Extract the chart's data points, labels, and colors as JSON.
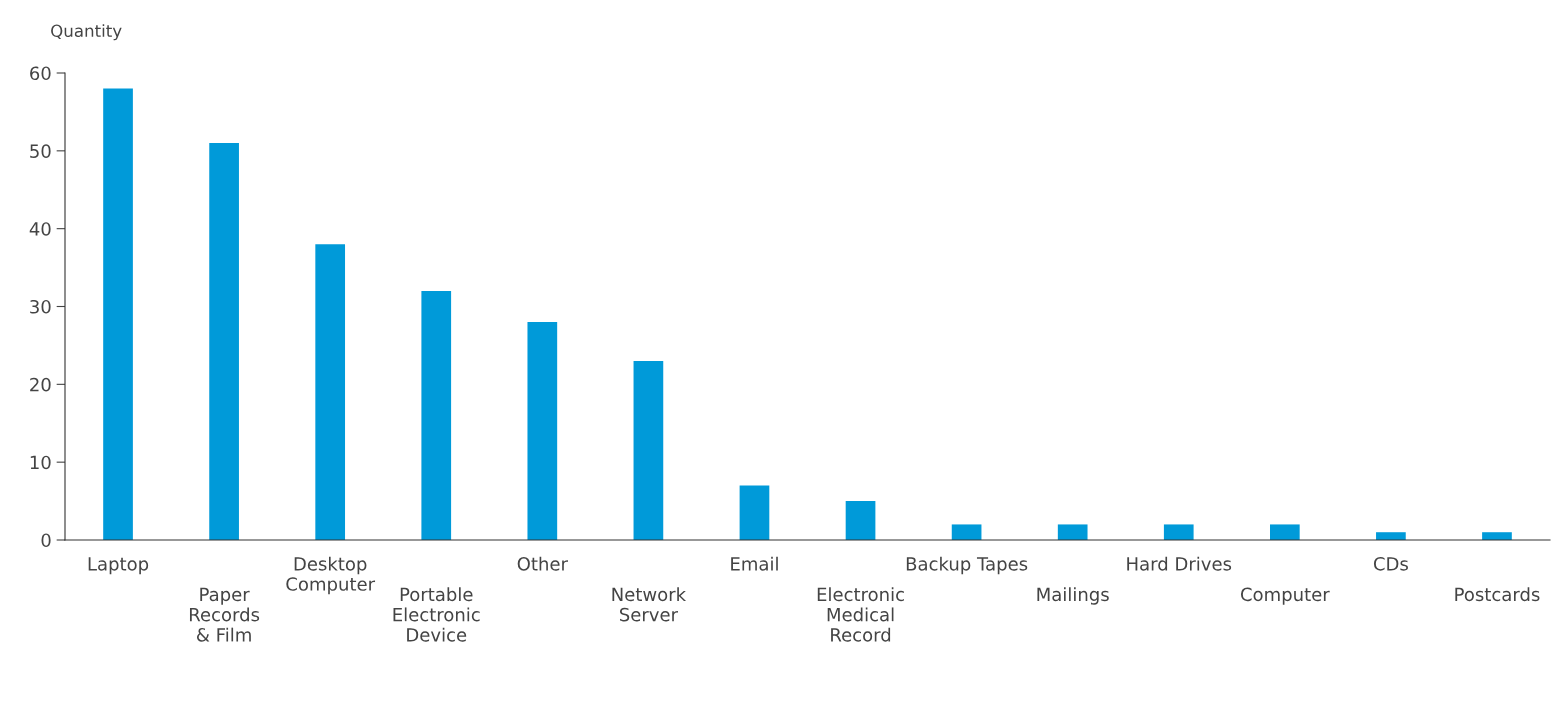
{
  "chart_data": {
    "type": "bar",
    "ylabel": "Quantity",
    "categories": [
      "Laptop",
      "Paper\nRecords\n& Film",
      "Desktop\nComputer",
      "Portable\nElectronic\nDevice",
      "Other",
      "Network\nServer",
      "Email",
      "Electronic\nMedical\nRecord",
      "Backup Tapes",
      "Mailings",
      "Hard Drives",
      "Computer",
      "CDs",
      "Postcards"
    ],
    "values": [
      58,
      51,
      38,
      32,
      28,
      23,
      7,
      5,
      2,
      2,
      2,
      2,
      1,
      1
    ],
    "color": "#009ad9",
    "ylim": [
      0,
      60
    ],
    "yticks": [
      0,
      10,
      20,
      30,
      40,
      50,
      60
    ],
    "grid": false
  }
}
